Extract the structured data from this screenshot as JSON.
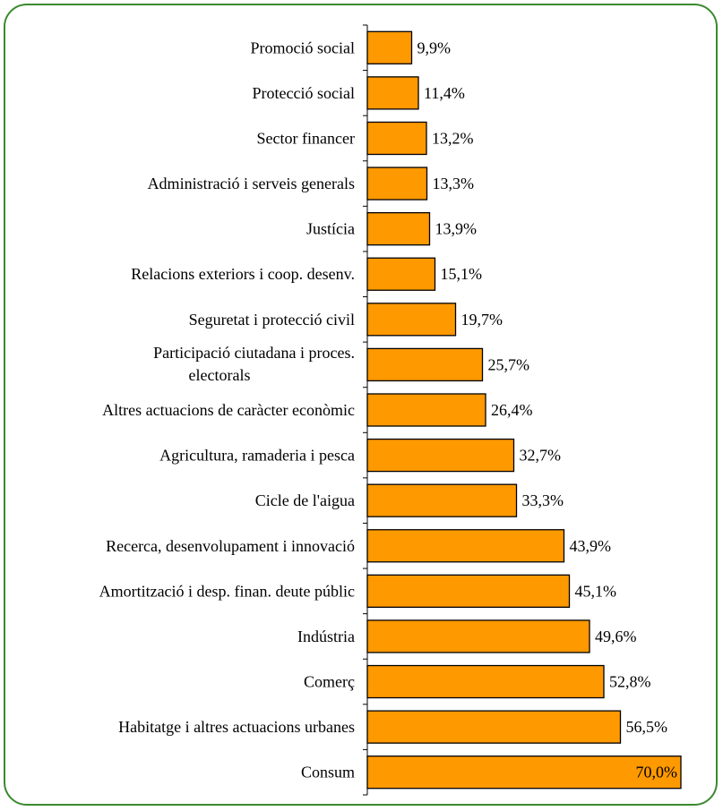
{
  "chart_data": {
    "type": "bar",
    "orientation": "horizontal",
    "categories": [
      [
        "Promoció social"
      ],
      [
        "Protecció social"
      ],
      [
        "Sector financer"
      ],
      [
        "Administració i serveis generals"
      ],
      [
        "Justícia"
      ],
      [
        "Relacions exteriors i coop. desenv."
      ],
      [
        "Seguretat i protecció civil"
      ],
      [
        "Participació ciutadana i proces.",
        "electorals"
      ],
      [
        "Altres actuacions de caràcter econòmic"
      ],
      [
        "Agricultura, ramaderia i pesca"
      ],
      [
        "Cicle de l'aigua"
      ],
      [
        "Recerca, desenvolupament i innovació"
      ],
      [
        "Amortització i desp. finan. deute públic"
      ],
      [
        "Indústria"
      ],
      [
        "Comerç"
      ],
      [
        "Habitatge i altres actuacions urbanes"
      ],
      [
        "Consum"
      ]
    ],
    "values": [
      9.9,
      11.4,
      13.2,
      13.3,
      13.9,
      15.1,
      19.7,
      25.7,
      26.4,
      32.7,
      33.3,
      43.9,
      45.1,
      49.6,
      52.8,
      56.5,
      70.0
    ],
    "value_labels": [
      "9,9%",
      "11,4%",
      "13,2%",
      "13,3%",
      "13,9%",
      "15,1%",
      "19,7%",
      "25,7%",
      "26,4%",
      "32,7%",
      "33,3%",
      "43,9%",
      "45,1%",
      "49,6%",
      "52,8%",
      "56,5%",
      "70,0%"
    ],
    "xlim": [
      0,
      70
    ],
    "colors": {
      "bar_fill": "#ff9900",
      "bar_stroke": "#000000",
      "frame": "#3a8a2e"
    },
    "title": "",
    "xlabel": "",
    "ylabel": "",
    "grid": false,
    "legend": "none"
  }
}
